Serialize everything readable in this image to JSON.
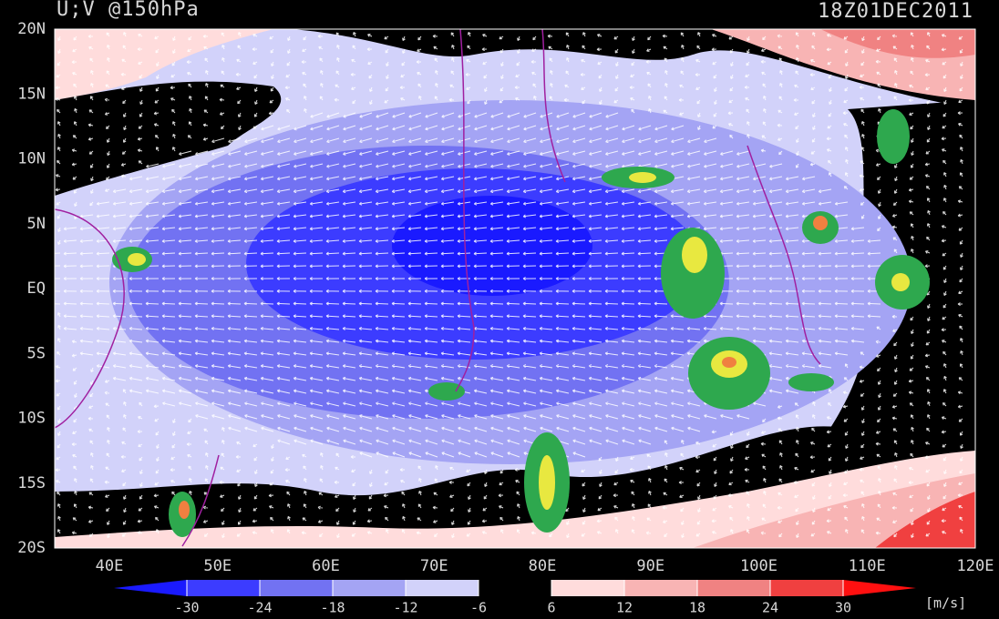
{
  "header": {
    "title": "U;V @150hPa",
    "time": "18Z01DEC2011"
  },
  "map": {
    "lat_labels": [
      "20N",
      "15N",
      "10N",
      "5N",
      "EQ",
      "5S",
      "10S",
      "15S",
      "20S"
    ],
    "lon_labels": [
      "40E",
      "50E",
      "60E",
      "70E",
      "80E",
      "90E",
      "100E",
      "110E",
      "120E"
    ]
  },
  "colorbar": {
    "ticks": [
      -30,
      -24,
      -18,
      -12,
      -6,
      6,
      12,
      18,
      24,
      30
    ],
    "colors": [
      "#1a1aff",
      "#3c3cff",
      "#7272f2",
      "#a4a4f4",
      "#d2d2fa",
      "#000000",
      "#ffdcdc",
      "#f8b4b4",
      "#f08282",
      "#f04040",
      "#ff1010"
    ],
    "unit": "[m/s]"
  }
}
